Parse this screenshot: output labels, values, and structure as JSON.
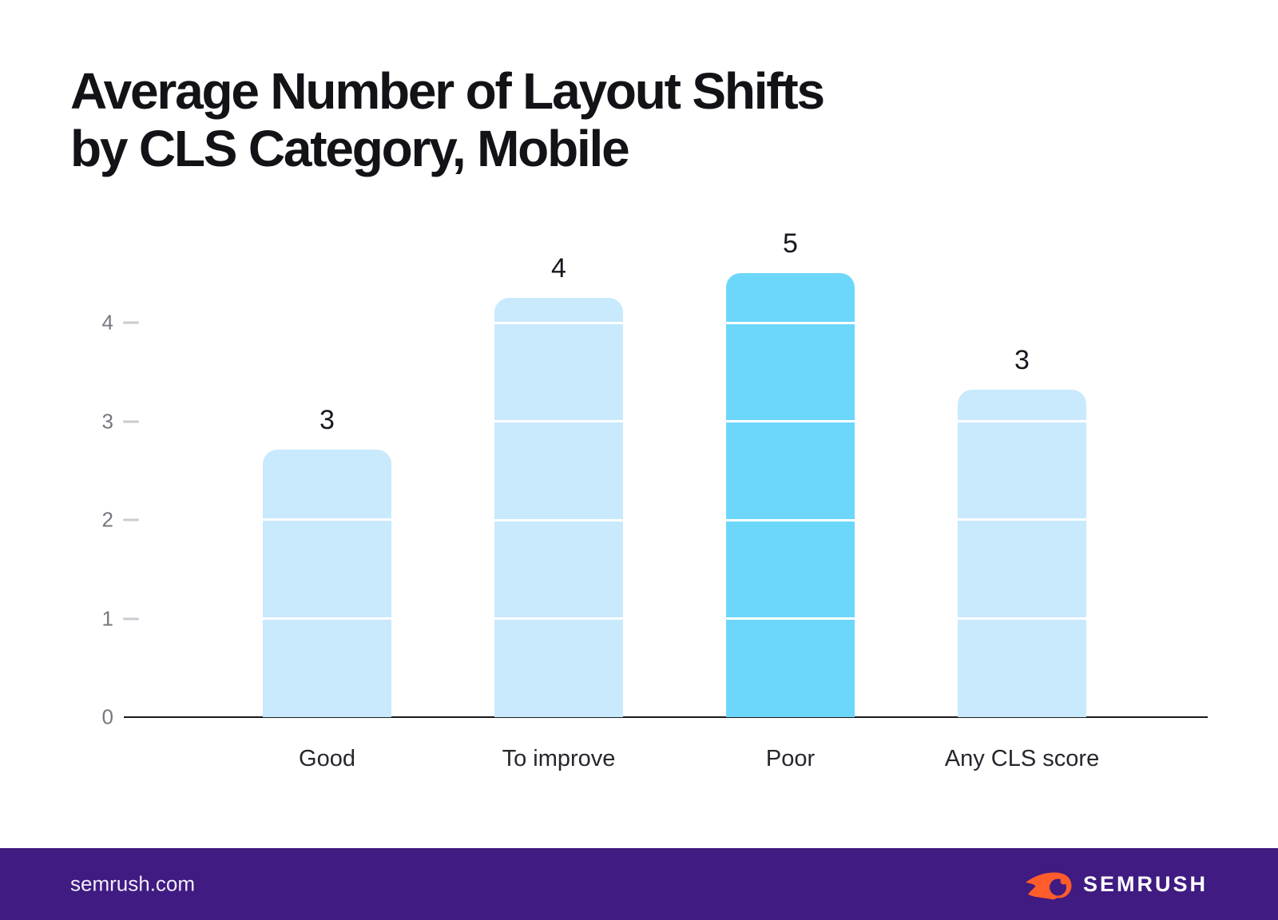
{
  "title": {
    "line1": "Average Number of Layout Shifts",
    "line2": "by CLS Category, Mobile"
  },
  "chart_data": {
    "type": "bar",
    "title": "Average Number of Layout Shifts by CLS Category, Mobile",
    "categories": [
      "Good",
      "To improve",
      "Poor",
      "Any CLS score"
    ],
    "values": [
      3,
      4,
      5,
      3
    ],
    "bar_heights_plotted": [
      2.71,
      4.25,
      4.5,
      3.32
    ],
    "xlabel": "",
    "ylabel": "",
    "ylim": [
      0,
      4.6
    ],
    "yticks": [
      0,
      1,
      2,
      3,
      4
    ],
    "grid": "white gridlines overlaid on bars at integer values 1-4",
    "legend": "none",
    "bar_colors": [
      "#C9E9FC",
      "#C9E9FC",
      "#6CD7FA",
      "#C9E9FC"
    ],
    "highlighted_category": "Poor"
  },
  "colors": {
    "background": "#FFFFFF",
    "bar_light_blue": "#C9E9FC",
    "bar_highlight_blue": "#6CD7FA",
    "axis_line": "#1A1A1A",
    "tick_label_gray": "#75787E",
    "tick_dash_gray": "#C9CCD1",
    "value_label_dark": "#17171F",
    "category_label_dark": "#26262E",
    "footer_purple": "#3F1B82",
    "brand_orange": "#FF5C2B",
    "footer_text_white": "#F1EDF9"
  },
  "footer": {
    "site_url": "semrush.com",
    "brand_wordmark": "SEMRUSH",
    "brand_icon": "semrush-flame-icon"
  }
}
